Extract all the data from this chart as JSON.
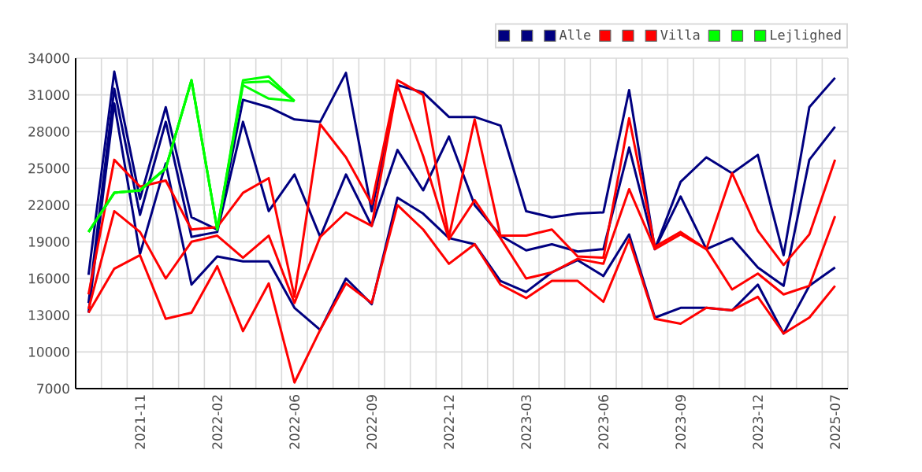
{
  "chart_data": {
    "type": "line",
    "categories": [
      null,
      null,
      "2021-11",
      null,
      null,
      "2022-02",
      null,
      null,
      "2022-06",
      null,
      null,
      "2022-09",
      null,
      null,
      "2022-12",
      null,
      null,
      "2023-03",
      null,
      null,
      "2023-06",
      null,
      null,
      "2023-09",
      null,
      null,
      "2023-12",
      null,
      null,
      "2025-07"
    ],
    "ylim": [
      7000,
      34000
    ],
    "yticks": [
      7000,
      10000,
      13000,
      16000,
      19000,
      22000,
      25000,
      28000,
      31000,
      34000
    ],
    "grid": true,
    "legend": "top right",
    "marker": "none",
    "line_style": "solid",
    "series": [
      {
        "color": "#000080",
        "values": [
          16300,
          32900,
          22500,
          30000,
          21000,
          20000,
          30600,
          30000,
          29000,
          28800,
          32800,
          21500,
          31800,
          31200,
          29200,
          29200,
          28500,
          21500,
          21000,
          21300,
          21400,
          31400,
          18400,
          23900,
          25900,
          24600,
          26100,
          17900,
          30000,
          32400
        ]
      },
      {
        "color": "#000080",
        "values": [
          14000,
          31500,
          21200,
          28800,
          19400,
          19800,
          28800,
          21500,
          24500,
          19400,
          24500,
          20300,
          26500,
          23200,
          27600,
          22000,
          19500,
          18300,
          18800,
          18200,
          18400,
          26700,
          18400,
          22700,
          18400,
          19300,
          16900,
          15400,
          25700,
          28400
        ]
      },
      {
        "name": "Alle",
        "color": "#000080",
        "values": [
          13200,
          30300,
          18000,
          25400,
          15500,
          17800,
          17400,
          17400,
          13600,
          11800,
          16000,
          13900,
          22600,
          21300,
          19300,
          18800,
          15800,
          14900,
          16500,
          17500,
          16200,
          19600,
          12800,
          13600,
          13600,
          13400,
          15500,
          11500,
          15400,
          16900
        ]
      },
      {
        "color": "#ff0000",
        "values": [
          14700,
          25700,
          23500,
          24000,
          20000,
          20200,
          23000,
          24200,
          14500,
          28600,
          25900,
          22100,
          32200,
          31000,
          19400,
          29000,
          19500,
          19500,
          20000,
          17800,
          17700,
          29100,
          18600,
          19800,
          18400,
          24600,
          19900,
          17100,
          19600,
          25700
        ]
      },
      {
        "color": "#ff0000",
        "values": [
          13500,
          21500,
          19800,
          16000,
          19000,
          19500,
          17700,
          19500,
          14000,
          19400,
          21400,
          20300,
          31800,
          26000,
          19200,
          22400,
          19300,
          16000,
          16500,
          17600,
          17200,
          23300,
          18400,
          19600,
          18400,
          15100,
          16400,
          14700,
          15400,
          21100
        ]
      },
      {
        "name": "Villa",
        "color": "#ff0000",
        "values": [
          13200,
          16800,
          17900,
          12700,
          13200,
          17000,
          11700,
          15600,
          7500,
          11800,
          15600,
          14000,
          22000,
          20000,
          17200,
          18800,
          15500,
          14400,
          15800,
          15800,
          14100,
          19200,
          12700,
          12300,
          13600,
          13400,
          14500,
          11500,
          12800,
          15400
        ]
      },
      {
        "color": "#00ff00",
        "values": [
          19800,
          23000,
          23200,
          25000,
          32200,
          20000,
          32200,
          32500,
          30500,
          null,
          null,
          null,
          null,
          null,
          null,
          null,
          null,
          null,
          null,
          null,
          null,
          null,
          null,
          null,
          null,
          null,
          null,
          null,
          null,
          null
        ]
      },
      {
        "color": "#00ff00",
        "values": [
          19800,
          23000,
          23200,
          25000,
          32200,
          20000,
          32000,
          32100,
          30500,
          null,
          null,
          null,
          null,
          null,
          null,
          null,
          null,
          null,
          null,
          null,
          null,
          null,
          null,
          null,
          null,
          null,
          null,
          null,
          null,
          null
        ]
      },
      {
        "name": "Lejlighed",
        "color": "#00ff00",
        "values": [
          19800,
          23000,
          23200,
          25000,
          32200,
          20000,
          31800,
          30700,
          30500,
          null,
          null,
          null,
          null,
          null,
          null,
          null,
          null,
          null,
          null,
          null,
          null,
          null,
          null,
          null,
          null,
          null,
          null,
          null,
          null,
          null
        ]
      }
    ]
  }
}
